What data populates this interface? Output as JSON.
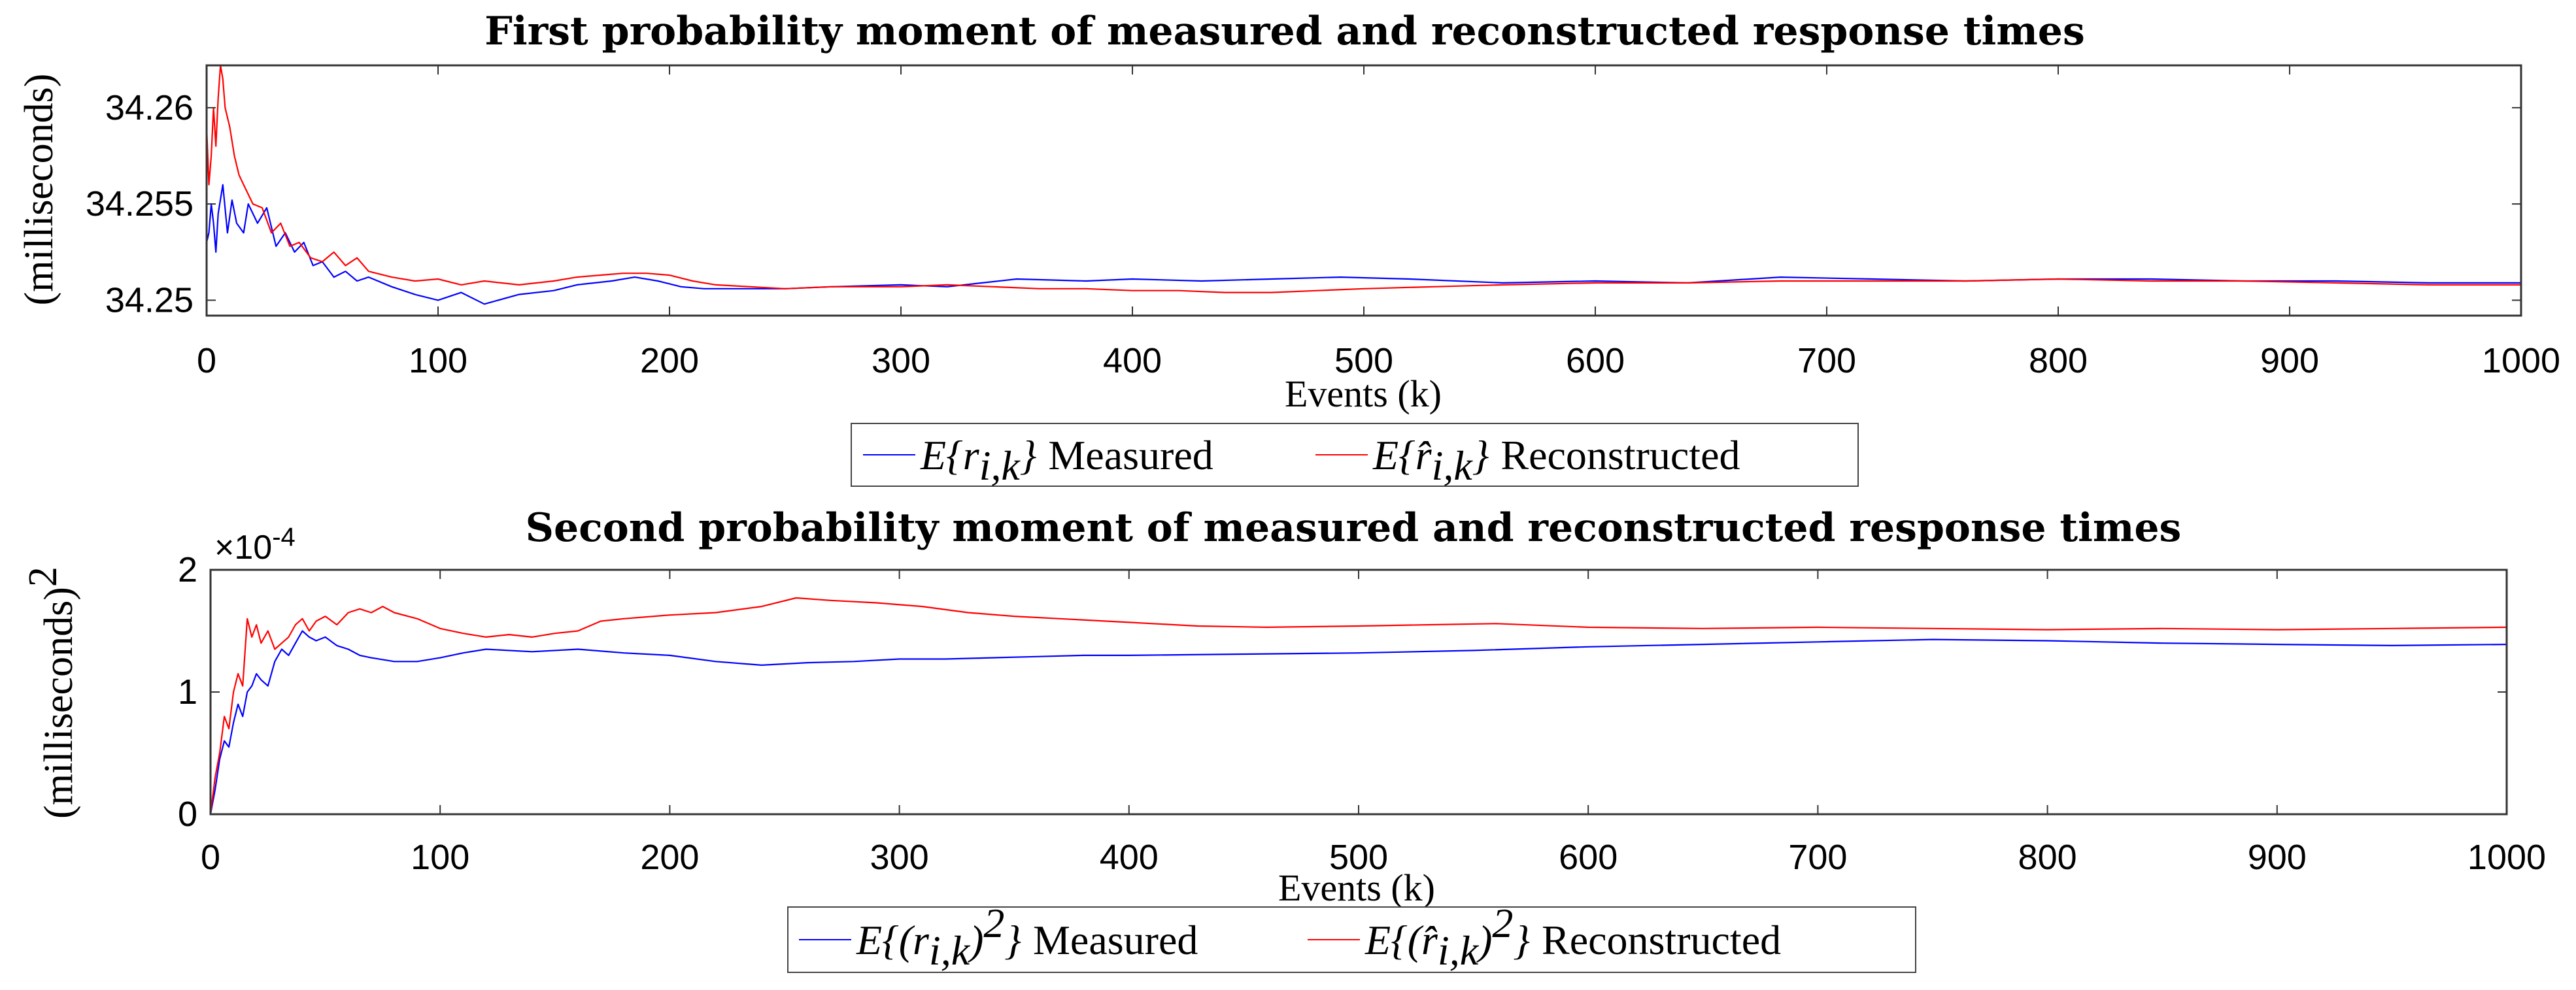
{
  "chart_data": [
    {
      "type": "line",
      "title": "First probability moment of measured and reconstructed response times",
      "xlabel": "Events (k)",
      "ylabel": "(milliseconds)",
      "xlim": [
        0,
        1000
      ],
      "ylim": [
        34.2492,
        34.2622
      ],
      "xticks": [
        0,
        100,
        200,
        300,
        400,
        500,
        600,
        700,
        800,
        900,
        1000
      ],
      "xtick_labels": [
        "0",
        "100",
        "200",
        "300",
        "400",
        "500",
        "600",
        "700",
        "800",
        "900",
        "1000"
      ],
      "yticks": [
        34.25,
        34.255,
        34.26
      ],
      "ytick_labels": [
        "34.25",
        "34.255",
        "34.26"
      ],
      "grid": false,
      "legend_position": "bottom-outside",
      "series": [
        {
          "name": "E{r_{i,k}} Measured",
          "legend_math": "E{r",
          "legend_sub": "i,k",
          "legend_close": "}",
          "legend_text": "Measured",
          "color": "#0000ff",
          "points": [
            [
              0,
              34.253
            ],
            [
              1,
              34.2535
            ],
            [
              2,
              34.255
            ],
            [
              3,
              34.254
            ],
            [
              4,
              34.2525
            ],
            [
              5,
              34.2545
            ],
            [
              7,
              34.256
            ],
            [
              9,
              34.2535
            ],
            [
              11,
              34.2552
            ],
            [
              13,
              34.254
            ],
            [
              16,
              34.2535
            ],
            [
              18,
              34.255
            ],
            [
              22,
              34.254
            ],
            [
              26,
              34.2548
            ],
            [
              30,
              34.2528
            ],
            [
              34,
              34.2535
            ],
            [
              38,
              34.2525
            ],
            [
              42,
              34.253
            ],
            [
              46,
              34.2518
            ],
            [
              50,
              34.252
            ],
            [
              55,
              34.2512
            ],
            [
              60,
              34.2515
            ],
            [
              65,
              34.251
            ],
            [
              70,
              34.2512
            ],
            [
              80,
              34.2507
            ],
            [
              90,
              34.2503
            ],
            [
              100,
              34.25
            ],
            [
              110,
              34.2504
            ],
            [
              120,
              34.2498
            ],
            [
              135,
              34.2503
            ],
            [
              150,
              34.2505
            ],
            [
              160,
              34.2508
            ],
            [
              175,
              34.251
            ],
            [
              185,
              34.2512
            ],
            [
              195,
              34.251
            ],
            [
              205,
              34.2507
            ],
            [
              215,
              34.2506
            ],
            [
              230,
              34.2506
            ],
            [
              250,
              34.2506
            ],
            [
              270,
              34.2507
            ],
            [
              300,
              34.2508
            ],
            [
              320,
              34.2507
            ],
            [
              335,
              34.2509
            ],
            [
              350,
              34.2511
            ],
            [
              380,
              34.251
            ],
            [
              400,
              34.2511
            ],
            [
              430,
              34.251
            ],
            [
              460,
              34.2511
            ],
            [
              490,
              34.2512
            ],
            [
              520,
              34.2511
            ],
            [
              560,
              34.2509
            ],
            [
              600,
              34.251
            ],
            [
              640,
              34.2509
            ],
            [
              680,
              34.2512
            ],
            [
              720,
              34.2511
            ],
            [
              760,
              34.251
            ],
            [
              800,
              34.2511
            ],
            [
              840,
              34.2511
            ],
            [
              880,
              34.251
            ],
            [
              920,
              34.251
            ],
            [
              960,
              34.2509
            ],
            [
              1000,
              34.2509
            ]
          ]
        },
        {
          "name": "E{r̂_{i,k}} Reconstructed",
          "legend_math": "E{r̂",
          "legend_sub": "i,k",
          "legend_close": "}",
          "legend_text": "Reconstructed",
          "color": "#ff0000",
          "points": [
            [
              0,
              34.259
            ],
            [
              1,
              34.256
            ],
            [
              2,
              34.2575
            ],
            [
              3,
              34.26
            ],
            [
              4,
              34.258
            ],
            [
              5,
              34.2605
            ],
            [
              6,
              34.2622
            ],
            [
              7,
              34.2615
            ],
            [
              8,
              34.26
            ],
            [
              10,
              34.259
            ],
            [
              12,
              34.2575
            ],
            [
              14,
              34.2565
            ],
            [
              16,
              34.256
            ],
            [
              18,
              34.2555
            ],
            [
              20,
              34.255
            ],
            [
              24,
              34.2548
            ],
            [
              28,
              34.2535
            ],
            [
              32,
              34.254
            ],
            [
              36,
              34.2528
            ],
            [
              40,
              34.253
            ],
            [
              45,
              34.2522
            ],
            [
              50,
              34.252
            ],
            [
              55,
              34.2525
            ],
            [
              60,
              34.2518
            ],
            [
              65,
              34.2522
            ],
            [
              70,
              34.2515
            ],
            [
              80,
              34.2512
            ],
            [
              90,
              34.251
            ],
            [
              100,
              34.2511
            ],
            [
              110,
              34.2508
            ],
            [
              120,
              34.251
            ],
            [
              135,
              34.2508
            ],
            [
              150,
              34.251
            ],
            [
              160,
              34.2512
            ],
            [
              170,
              34.2513
            ],
            [
              180,
              34.2514
            ],
            [
              190,
              34.2514
            ],
            [
              200,
              34.2513
            ],
            [
              210,
              34.251
            ],
            [
              220,
              34.2508
            ],
            [
              235,
              34.2507
            ],
            [
              250,
              34.2506
            ],
            [
              270,
              34.2507
            ],
            [
              300,
              34.2507
            ],
            [
              320,
              34.2508
            ],
            [
              340,
              34.2507
            ],
            [
              360,
              34.2506
            ],
            [
              380,
              34.2506
            ],
            [
              400,
              34.2505
            ],
            [
              420,
              34.2505
            ],
            [
              440,
              34.2504
            ],
            [
              460,
              34.2504
            ],
            [
              480,
              34.2505
            ],
            [
              500,
              34.2506
            ],
            [
              530,
              34.2507
            ],
            [
              560,
              34.2508
            ],
            [
              600,
              34.2509
            ],
            [
              640,
              34.2509
            ],
            [
              680,
              34.251
            ],
            [
              720,
              34.251
            ],
            [
              760,
              34.251
            ],
            [
              800,
              34.2511
            ],
            [
              840,
              34.251
            ],
            [
              880,
              34.251
            ],
            [
              920,
              34.2509
            ],
            [
              960,
              34.2508
            ],
            [
              1000,
              34.2508
            ]
          ]
        }
      ]
    },
    {
      "type": "line",
      "title": "Second probability moment of measured and reconstructed response times",
      "xlabel": "Events (k)",
      "ylabel": "(milliseconds)",
      "ylabel_power": "2",
      "axis_multiplier": "×10",
      "axis_multiplier_exp": "-4",
      "xlim": [
        0,
        1000
      ],
      "ylim": [
        0,
        2
      ],
      "xticks": [
        0,
        100,
        200,
        300,
        400,
        500,
        600,
        700,
        800,
        900,
        1000
      ],
      "xtick_labels": [
        "0",
        "100",
        "200",
        "300",
        "400",
        "500",
        "600",
        "700",
        "800",
        "900",
        "1000"
      ],
      "yticks": [
        0,
        1,
        2
      ],
      "ytick_labels": [
        "0",
        "1",
        "2"
      ],
      "grid": false,
      "legend_position": "bottom-outside",
      "series": [
        {
          "name": "E{(r_{i,k})^2} Measured",
          "legend_math": "E{(r",
          "legend_sub": "i,k",
          "legend_close": ")",
          "legend_sup": "2",
          "legend_close2": "}",
          "legend_text": "Measured",
          "color": "#0000ff",
          "points": [
            [
              0,
              0.0
            ],
            [
              2,
              0.2
            ],
            [
              4,
              0.45
            ],
            [
              6,
              0.6
            ],
            [
              8,
              0.55
            ],
            [
              10,
              0.75
            ],
            [
              12,
              0.9
            ],
            [
              14,
              0.8
            ],
            [
              16,
              1.0
            ],
            [
              18,
              1.05
            ],
            [
              20,
              1.15
            ],
            [
              22,
              1.1
            ],
            [
              25,
              1.05
            ],
            [
              28,
              1.25
            ],
            [
              31,
              1.35
            ],
            [
              34,
              1.3
            ],
            [
              37,
              1.4
            ],
            [
              40,
              1.5
            ],
            [
              43,
              1.45
            ],
            [
              46,
              1.42
            ],
            [
              50,
              1.45
            ],
            [
              55,
              1.38
            ],
            [
              60,
              1.35
            ],
            [
              65,
              1.3
            ],
            [
              70,
              1.28
            ],
            [
              80,
              1.25
            ],
            [
              90,
              1.25
            ],
            [
              100,
              1.28
            ],
            [
              110,
              1.32
            ],
            [
              120,
              1.35
            ],
            [
              140,
              1.33
            ],
            [
              160,
              1.35
            ],
            [
              180,
              1.32
            ],
            [
              200,
              1.3
            ],
            [
              220,
              1.25
            ],
            [
              240,
              1.22
            ],
            [
              260,
              1.24
            ],
            [
              280,
              1.25
            ],
            [
              300,
              1.27
            ],
            [
              320,
              1.27
            ],
            [
              340,
              1.28
            ],
            [
              360,
              1.29
            ],
            [
              380,
              1.3
            ],
            [
              400,
              1.3
            ],
            [
              450,
              1.31
            ],
            [
              500,
              1.32
            ],
            [
              550,
              1.34
            ],
            [
              600,
              1.37
            ],
            [
              650,
              1.39
            ],
            [
              700,
              1.41
            ],
            [
              750,
              1.43
            ],
            [
              800,
              1.42
            ],
            [
              850,
              1.4
            ],
            [
              900,
              1.39
            ],
            [
              950,
              1.38
            ],
            [
              1000,
              1.39
            ]
          ]
        },
        {
          "name": "E{(r̂_{i,k})^2} Reconstructed",
          "legend_math": "E{(r̂",
          "legend_sub": "i,k",
          "legend_close": ")",
          "legend_sup": "2",
          "legend_close2": "}",
          "legend_text": "Reconstructed",
          "color": "#ff0000",
          "points": [
            [
              0,
              0.0
            ],
            [
              2,
              0.3
            ],
            [
              4,
              0.5
            ],
            [
              6,
              0.8
            ],
            [
              8,
              0.7
            ],
            [
              10,
              1.0
            ],
            [
              12,
              1.15
            ],
            [
              14,
              1.05
            ],
            [
              16,
              1.6
            ],
            [
              18,
              1.45
            ],
            [
              20,
              1.55
            ],
            [
              22,
              1.4
            ],
            [
              25,
              1.5
            ],
            [
              28,
              1.35
            ],
            [
              31,
              1.4
            ],
            [
              34,
              1.45
            ],
            [
              37,
              1.55
            ],
            [
              40,
              1.6
            ],
            [
              43,
              1.5
            ],
            [
              46,
              1.58
            ],
            [
              50,
              1.62
            ],
            [
              55,
              1.55
            ],
            [
              60,
              1.65
            ],
            [
              65,
              1.68
            ],
            [
              70,
              1.65
            ],
            [
              75,
              1.7
            ],
            [
              80,
              1.65
            ],
            [
              90,
              1.6
            ],
            [
              100,
              1.52
            ],
            [
              110,
              1.48
            ],
            [
              120,
              1.45
            ],
            [
              130,
              1.47
            ],
            [
              140,
              1.45
            ],
            [
              150,
              1.48
            ],
            [
              160,
              1.5
            ],
            [
              170,
              1.58
            ],
            [
              180,
              1.6
            ],
            [
              200,
              1.63
            ],
            [
              220,
              1.65
            ],
            [
              240,
              1.7
            ],
            [
              255,
              1.77
            ],
            [
              270,
              1.75
            ],
            [
              290,
              1.73
            ],
            [
              310,
              1.7
            ],
            [
              330,
              1.65
            ],
            [
              350,
              1.62
            ],
            [
              370,
              1.6
            ],
            [
              400,
              1.57
            ],
            [
              430,
              1.54
            ],
            [
              460,
              1.53
            ],
            [
              500,
              1.54
            ],
            [
              530,
              1.55
            ],
            [
              560,
              1.56
            ],
            [
              600,
              1.53
            ],
            [
              650,
              1.52
            ],
            [
              700,
              1.53
            ],
            [
              750,
              1.52
            ],
            [
              800,
              1.51
            ],
            [
              850,
              1.52
            ],
            [
              900,
              1.51
            ],
            [
              950,
              1.52
            ],
            [
              1000,
              1.53
            ]
          ]
        }
      ]
    }
  ]
}
